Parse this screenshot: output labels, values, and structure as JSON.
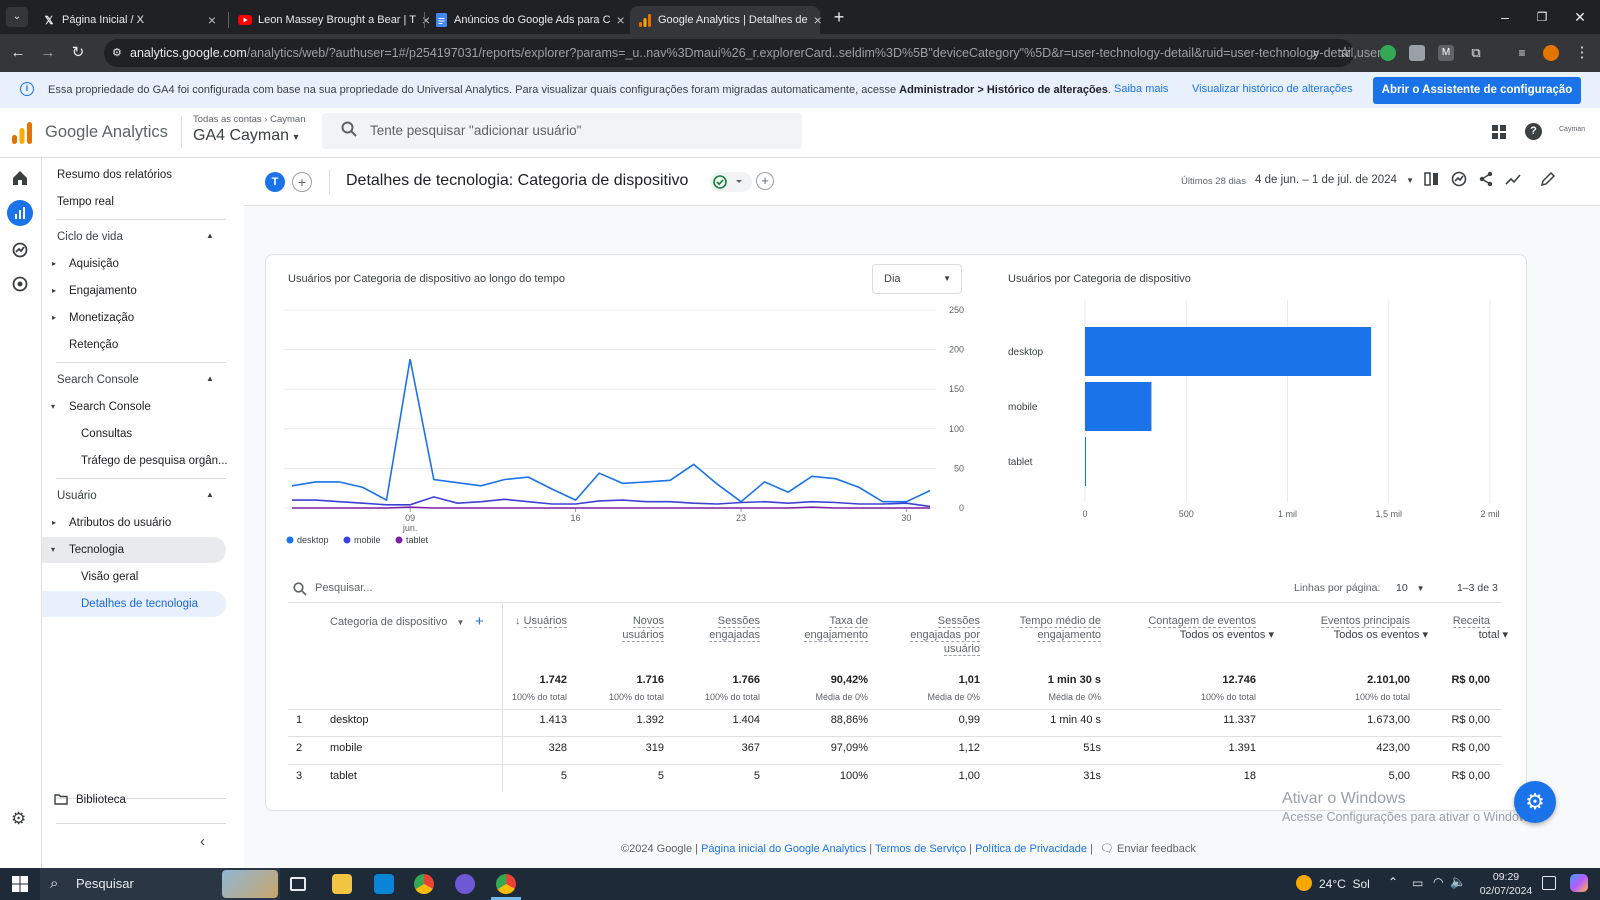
{
  "browser": {
    "tabs": [
      {
        "title": "Página Inicial / X",
        "icon": "x-logo-icon"
      },
      {
        "title": "Leon Massey Brought a Bear | T",
        "icon": "youtube-icon"
      },
      {
        "title": "Anúncios do Google Ads para C",
        "icon": "google-docs-icon"
      },
      {
        "title": "Google Analytics | Detalhes de",
        "icon": "google-analytics-icon"
      }
    ],
    "url_domain": "analytics.google.com",
    "url_path": "/analytics/web/?authuser=1#/p254197031/reports/explorer?params=_u..nav%3Dmaui%26_r.explorerCard..seldim%3D%5B\"deviceCategory\"%5D&r=user-technology-detail&ruid=user-technology-detail,user..."
  },
  "banner": {
    "message": "Essa propriedade do GA4 foi configurada com base na sua propriedade do Universal Analytics. Para visualizar quais configurações foram migradas automaticamente, acesse",
    "message_bold": "Administrador > Histórico de alterações",
    "message_end": ".",
    "link_more": "Saiba mais",
    "link_history": "Visualizar histórico de alterações",
    "cta": "Abrir o Assistente de configuração"
  },
  "header": {
    "product": "Google Analytics",
    "breadcrumb_all": "Todas as contas",
    "breadcrumb_account": "Cayman",
    "property": "GA4 Cayman",
    "search_placeholder": "Tente pesquisar \"adicionar usuário\"",
    "account_label": "Cayman"
  },
  "leftnav": {
    "report_summary": "Resumo dos relatórios",
    "realtime": "Tempo real",
    "lifecycle": "Ciclo de vida",
    "acquisition": "Aquisição",
    "engagement": "Engajamento",
    "monetization": "Monetização",
    "retention": "Retenção",
    "search_console_section": "Search Console",
    "search_console": "Search Console",
    "queries": "Consultas",
    "organic_traffic": "Tráfego de pesquisa orgân...",
    "user_section": "Usuário",
    "user_attributes": "Atributos do usuário",
    "technology": "Tecnologia",
    "overview": "Visão geral",
    "tech_details": "Detalhes de tecnologia",
    "library": "Biblioteca"
  },
  "report": {
    "avatar": "T",
    "title": "Detalhes de tecnologia: Categoria de dispositivo",
    "date_label": "Últimos 28 dias",
    "date_range": "4 de jun. – 1 de jul. de 2024"
  },
  "line_chart": {
    "title": "Usuários por Categoria de dispositivo ao longo do tempo",
    "granularity": "Dia"
  },
  "bar_chart_title": "Usuários por Categoria de dispositivo",
  "chart_data": [
    {
      "type": "line",
      "title": "Usuários por Categoria de dispositivo ao longo do tempo",
      "x": [
        "04",
        "05",
        "06",
        "07",
        "08",
        "09",
        "10",
        "11",
        "12",
        "13",
        "14",
        "15",
        "16",
        "17",
        "18",
        "19",
        "20",
        "21",
        "22",
        "23",
        "24",
        "25",
        "26",
        "27",
        "28",
        "29",
        "30",
        "01"
      ],
      "x_tick_labels": [
        "09",
        "jun.",
        "16",
        "23",
        "30"
      ],
      "y_tick_labels": [
        "250",
        "200",
        "150",
        "100",
        "50",
        "0"
      ],
      "ylim": [
        0,
        250
      ],
      "legend": "bottom-left",
      "grid": true,
      "series": [
        {
          "name": "desktop",
          "color": "#1a73e8",
          "values": [
            28,
            33,
            33,
            26,
            10,
            188,
            36,
            32,
            28,
            36,
            39,
            24,
            10,
            44,
            31,
            33,
            35,
            55,
            30,
            8,
            33,
            20,
            40,
            37,
            26,
            8,
            8,
            22
          ]
        },
        {
          "name": "mobile",
          "color": "#3c41d6",
          "values": [
            10,
            10,
            8,
            6,
            4,
            4,
            14,
            6,
            8,
            11,
            8,
            5,
            5,
            9,
            10,
            8,
            8,
            6,
            5,
            7,
            8,
            6,
            8,
            7,
            5,
            5,
            6,
            2
          ]
        },
        {
          "name": "tablet",
          "color": "#7b1fa2",
          "values": [
            0,
            0,
            0,
            0,
            0,
            1,
            0,
            0,
            0,
            0,
            0,
            0,
            0,
            0,
            0,
            0,
            0,
            0,
            0,
            0,
            0,
            0,
            1,
            0,
            0,
            0,
            0,
            0
          ]
        }
      ]
    },
    {
      "type": "bar",
      "orientation": "horizontal",
      "title": "Usuários por Categoria de dispositivo",
      "categories": [
        "desktop",
        "mobile",
        "tablet"
      ],
      "values": [
        1413,
        328,
        5
      ],
      "x_tick_labels": [
        "0",
        "500",
        "1 mil",
        "1,5 mil",
        "2 mil"
      ],
      "xlim": [
        0,
        2000
      ],
      "color": "#1a73e8"
    }
  ],
  "table": {
    "search_placeholder": "Pesquisar...",
    "rows_per_page_label": "Linhas por página:",
    "rows_per_page": "10",
    "pagination": "1–3 de 3",
    "dimension_header": "Categoria de dispositivo",
    "columns": [
      {
        "h1": "Usuários",
        "h2": "",
        "h3": "",
        "total": "1.742",
        "sub": "100% do total"
      },
      {
        "h1": "Novos",
        "h2": "usuários",
        "h3": "",
        "total": "1.716",
        "sub": "100% do total"
      },
      {
        "h1": "Sessões",
        "h2": "engajadas",
        "h3": "",
        "total": "1.766",
        "sub": "100% do total"
      },
      {
        "h1": "Taxa de",
        "h2": "engajamento",
        "h3": "",
        "total": "90,42%",
        "sub": "Média de 0%"
      },
      {
        "h1": "Sessões",
        "h2": "engajadas por",
        "h3": "usuário",
        "total": "1,01",
        "sub": "Média de 0%"
      },
      {
        "h1": "Tempo médio de",
        "h2": "engajamento",
        "h3": "",
        "total": "1 min 30 s",
        "sub": "Média de 0%"
      },
      {
        "h1": "Contagem de eventos",
        "h2": "Todos os eventos",
        "h3": "",
        "total": "12.746",
        "sub": "100% do total"
      },
      {
        "h1": "Eventos principais",
        "h2": "Todos os eventos",
        "h3": "",
        "total": "2.101,00",
        "sub": "100% do total"
      },
      {
        "h1": "Receita",
        "h2": "total",
        "h3": "",
        "total": "R$ 0,00",
        "sub": ""
      }
    ],
    "rows": [
      {
        "num": "1",
        "name": "desktop",
        "cells": [
          "1.413",
          "1.392",
          "1.404",
          "88,86%",
          "0,99",
          "1 min 40 s",
          "11.337",
          "1.673,00",
          "R$ 0,00"
        ]
      },
      {
        "num": "2",
        "name": "mobile",
        "cells": [
          "328",
          "319",
          "367",
          "97,09%",
          "1,12",
          "51s",
          "1.391",
          "423,00",
          "R$ 0,00"
        ]
      },
      {
        "num": "3",
        "name": "tablet",
        "cells": [
          "5",
          "5",
          "5",
          "100%",
          "1,00",
          "31s",
          "18",
          "5,00",
          "R$ 0,00"
        ]
      }
    ]
  },
  "footer": {
    "copyright": "©2024 Google |",
    "home": "Página inicial do Google Analytics",
    "terms": "Termos de Serviço",
    "privacy": "Política de Privacidade",
    "feedback": "Enviar feedback"
  },
  "watermark": {
    "line1": "Ativar o Windows",
    "line2": "Acesse Configurações para ativar o Windows."
  },
  "taskbar": {
    "search": "Pesquisar",
    "weather": "24°C  Sol",
    "time": "09:29",
    "date": "02/07/2024"
  }
}
